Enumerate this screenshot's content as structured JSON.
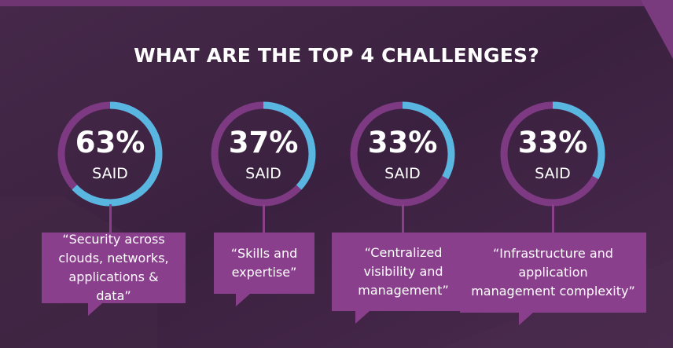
{
  "colors": {
    "background": "#3e2440",
    "ring_track": "#7d3a82",
    "ring_fill": "#58b6e0",
    "bubble": "#8a3f8d",
    "text": "#ffffff"
  },
  "chart_data": {
    "type": "donut",
    "title": "WHAT ARE THE TOP 4 CHALLENGES?",
    "unit": "%",
    "items": [
      {
        "value": 63,
        "display": "63%",
        "sublabel": "SAID",
        "quote": "“Security across\nclouds, networks,\napplications & data”"
      },
      {
        "value": 37,
        "display": "37%",
        "sublabel": "SAID",
        "quote": "“Skills and\nexpertise”"
      },
      {
        "value": 33,
        "display": "33%",
        "sublabel": "SAID",
        "quote": "“Centralized\nvisibility and\nmanagement”"
      },
      {
        "value": 33,
        "display": "33%",
        "sublabel": "SAID",
        "quote": "“Infrastructure and\napplication\nmanagement complexity”"
      }
    ]
  }
}
